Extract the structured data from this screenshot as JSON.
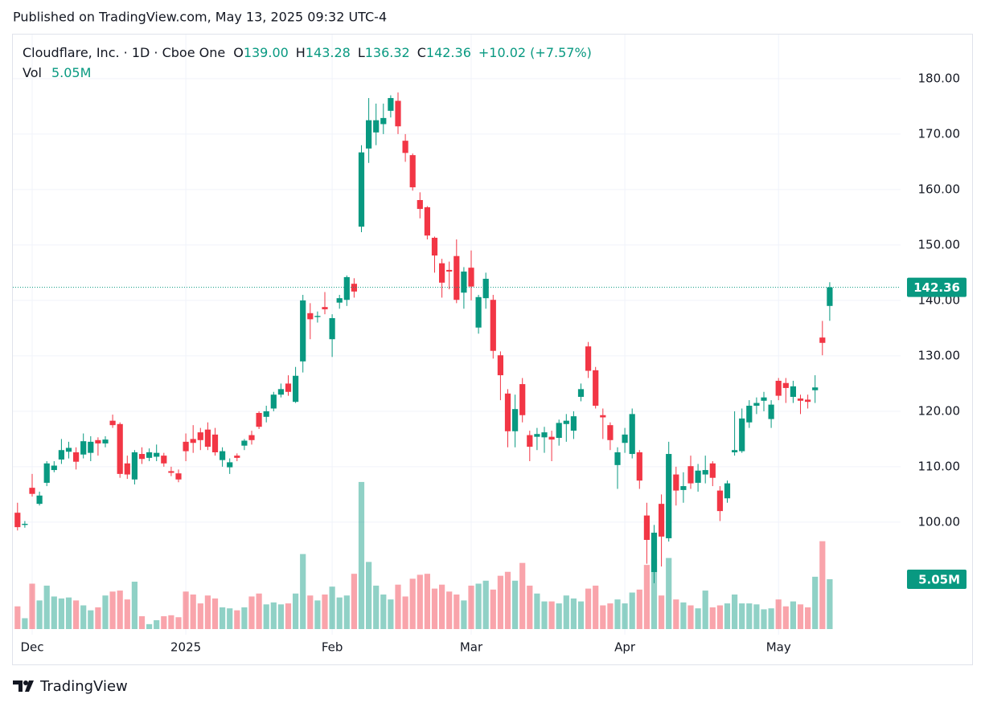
{
  "header": "Published on TradingView.com, May 13, 2025 09:32 UTC-4",
  "footer": "TradingView",
  "chart_data": {
    "type": "candlestick",
    "legend": {
      "title": "Cloudflare, Inc. · 1D · Cboe One",
      "ohlc": [
        {
          "label": "O",
          "value": "139.00"
        },
        {
          "label": "H",
          "value": "143.28"
        },
        {
          "label": "L",
          "value": "136.32"
        },
        {
          "label": "C",
          "value": "142.36"
        }
      ],
      "change": "+10.02 (+7.57%)"
    },
    "up_color": "#089981",
    "down_color": "#f23645",
    "grid": true,
    "ylim": [
      79.7,
      188.1
    ],
    "yticks": [
      {
        "value": 100,
        "label": "100.00"
      },
      {
        "value": 110,
        "label": "110.00"
      },
      {
        "value": 120,
        "label": "120.00"
      },
      {
        "value": 130,
        "label": "130.00"
      },
      {
        "value": 140,
        "label": "140.00"
      },
      {
        "value": 150,
        "label": "150.00"
      },
      {
        "value": 160,
        "label": "160.00"
      },
      {
        "value": 170,
        "label": "170.00"
      },
      {
        "value": 180,
        "label": "180.00"
      }
    ],
    "categories": [
      null,
      null,
      "Dec",
      null,
      null,
      null,
      null,
      null,
      null,
      null,
      null,
      null,
      null,
      null,
      null,
      null,
      null,
      null,
      null,
      null,
      null,
      null,
      null,
      "2025",
      null,
      null,
      null,
      null,
      null,
      null,
      null,
      null,
      null,
      null,
      null,
      null,
      null,
      null,
      null,
      null,
      null,
      null,
      null,
      "Feb",
      null,
      null,
      null,
      null,
      null,
      null,
      null,
      null,
      null,
      null,
      null,
      null,
      null,
      null,
      null,
      null,
      null,
      null,
      "Mar",
      null,
      null,
      null,
      null,
      null,
      null,
      null,
      null,
      null,
      null,
      null,
      null,
      null,
      null,
      null,
      null,
      null,
      null,
      null,
      null,
      "Apr",
      null,
      null,
      null,
      null,
      null,
      null,
      null,
      null,
      null,
      null,
      null,
      null,
      null,
      null,
      null,
      null,
      null,
      null,
      null,
      null,
      "May",
      null,
      null,
      null,
      null,
      null,
      null,
      null
    ],
    "open": [
      101.7,
      99.5,
      106.2,
      103.3,
      107.1,
      109.4,
      111.3,
      112.7,
      112.6,
      112.2,
      112.5,
      114.8,
      114.2,
      118.3,
      117.7,
      110.6,
      107.7,
      112.3,
      111.6,
      111.8,
      112,
      109.2,
      108.8,
      114.5,
      115,
      116.2,
      116.7,
      115.8,
      111.2,
      109.9,
      112,
      113.8,
      115.7,
      119.7,
      119,
      120.5,
      123,
      125,
      121.7,
      129,
      137.7,
      137,
      138.8,
      133,
      139.6,
      140.1,
      143,
      153.3,
      167.4,
      170.3,
      171.8,
      174.2,
      176,
      168.8,
      166.2,
      158.1,
      156.8,
      151.3,
      146.7,
      145.5,
      148,
      141.4,
      145.9,
      135.1,
      140.4,
      140.1,
      130.1,
      123.2,
      116.4,
      124.9,
      115.7,
      115.4,
      115.3,
      115.4,
      115.2,
      117.7,
      116.5,
      122.6,
      131.7,
      127.4,
      119.3,
      117.5,
      110.3,
      114.3,
      112.3,
      112.6,
      101.2,
      91,
      103.3,
      97.1,
      108.6,
      105.8,
      110.1,
      107.1,
      108.6,
      110.6,
      105.7,
      104.3,
      112.6,
      112.8,
      118,
      121,
      121.9,
      118.6,
      125.5,
      125.1,
      122.6,
      122.3,
      122.1,
      123.8,
      133.3,
      139
    ],
    "high": [
      103.5,
      100.2,
      108.7,
      105.5,
      111,
      111,
      115,
      114.5,
      113.5,
      116,
      115.5,
      115.3,
      115.5,
      119.4,
      118,
      112,
      113,
      113.5,
      113.3,
      114,
      112.5,
      110,
      109.5,
      116,
      117.5,
      117,
      118,
      117,
      113.5,
      111.5,
      112.4,
      115,
      116.5,
      120,
      121,
      123.5,
      125,
      126.5,
      128,
      141,
      139.5,
      138,
      141.5,
      137.5,
      141,
      144.5,
      144,
      168,
      176.5,
      175.5,
      175.5,
      177,
      177.5,
      170,
      166.5,
      159.5,
      157,
      151.5,
      147.5,
      147,
      151,
      146,
      149,
      141,
      145,
      141,
      130.8,
      124,
      123,
      126,
      116.5,
      117,
      117.2,
      116.5,
      118.5,
      119.5,
      120,
      125,
      132.5,
      128,
      120.5,
      118,
      113.5,
      117,
      120.5,
      113,
      103.5,
      99.5,
      105,
      114.5,
      110,
      109,
      112,
      110.5,
      112,
      111,
      106.5,
      107.5,
      120,
      120.5,
      122,
      122.5,
      123.5,
      122,
      126,
      126,
      125.5,
      123,
      123,
      126.5,
      136.3,
      143.28
    ],
    "low": [
      98.5,
      99,
      104.6,
      103,
      106.5,
      109,
      110.5,
      111.5,
      109.5,
      111.5,
      111,
      112,
      113.5,
      117,
      108,
      107.8,
      106.8,
      110.5,
      111,
      111,
      110,
      108.3,
      107.2,
      111,
      112.5,
      113,
      113,
      112,
      110,
      108.7,
      111,
      113,
      114,
      116.8,
      118,
      120,
      122.5,
      122.8,
      121.5,
      127,
      133,
      136,
      137.5,
      129.8,
      138.5,
      139,
      140.5,
      152.3,
      164.8,
      168,
      170,
      173,
      170,
      165,
      159.8,
      154.8,
      151,
      145,
      140.5,
      142,
      139.5,
      138.5,
      140,
      134,
      138.5,
      129.5,
      122,
      113.5,
      113.5,
      118,
      111,
      113,
      112.5,
      111,
      113.8,
      114.5,
      115,
      121.8,
      126,
      120.5,
      115,
      113,
      106,
      112.5,
      111.5,
      106,
      92.5,
      89,
      92,
      96.5,
      103,
      103.5,
      106,
      105.5,
      107,
      106.5,
      100.2,
      103.5,
      112,
      112.5,
      117,
      119.5,
      120,
      117,
      122,
      121.5,
      121.5,
      119.5,
      120.5,
      121.5,
      130.1,
      136.32
    ],
    "close": [
      99.1,
      99.7,
      105.1,
      104.8,
      110.6,
      110.2,
      113,
      113.4,
      110.9,
      114.6,
      114.5,
      114.2,
      114.9,
      117.5,
      108.7,
      108.6,
      112.6,
      111.4,
      112.6,
      112.5,
      110.6,
      108.9,
      107.7,
      112.8,
      114.3,
      114.8,
      113.6,
      112.6,
      112.8,
      110.8,
      111.6,
      114.7,
      114.8,
      117.2,
      120,
      123,
      124,
      123.5,
      126.4,
      140,
      136.6,
      137.2,
      138.4,
      136.8,
      140.4,
      144.2,
      141.6,
      166.7,
      172.5,
      172.5,
      172.9,
      176.5,
      171.4,
      166.6,
      160.4,
      156.5,
      151.7,
      148.1,
      143.2,
      145.2,
      140.1,
      145.2,
      142.5,
      140.6,
      143.9,
      130.9,
      126.5,
      116.4,
      120.4,
      119.3,
      113.6,
      115.9,
      116.2,
      114.9,
      117.9,
      118.3,
      119.1,
      124,
      127.3,
      121,
      118.9,
      114.8,
      112.6,
      115.8,
      119.5,
      107.5,
      96.8,
      98.1,
      97.4,
      112.3,
      105.7,
      106.5,
      107,
      109.3,
      109.4,
      108,
      102,
      107,
      113,
      118.7,
      121,
      121.5,
      122.5,
      121.2,
      122.8,
      124.2,
      124.5,
      121.9,
      121.7,
      124.3,
      132.34,
      142.36
    ],
    "volume": {
      "name": "Vol",
      "last_value_label": "5.05M",
      "ylim": [
        0,
        60.3
      ],
      "values": [
        2.3,
        1.1,
        4.6,
        2.9,
        4.4,
        3.3,
        3.1,
        3.2,
        2.9,
        2.4,
        1.9,
        2.2,
        3.4,
        3.8,
        3.9,
        3,
        4.8,
        1.3,
        0.5,
        0.9,
        1.3,
        1.4,
        1.2,
        3.8,
        3.5,
        2.6,
        3.4,
        3.1,
        2.2,
        2.1,
        1.9,
        2.2,
        3.3,
        3.6,
        2.5,
        2.7,
        2.5,
        2.6,
        3.6,
        7.6,
        3.4,
        2.9,
        3.5,
        4.3,
        3.2,
        3.4,
        5.6,
        14.9,
        6.8,
        4.4,
        3.5,
        3,
        4.5,
        3.3,
        5.1,
        5.5,
        5.6,
        4.1,
        4.5,
        3.8,
        3.5,
        2.9,
        4.4,
        4.6,
        4.9,
        4,
        5.4,
        5.8,
        4.9,
        6.7,
        4.4,
        3.6,
        2.8,
        2.8,
        2.6,
        3.4,
        3.1,
        2.8,
        4.1,
        4.4,
        2.4,
        2.6,
        3,
        2.6,
        3.7,
        4,
        6.5,
        7.1,
        3.4,
        7.2,
        3,
        2.7,
        2.4,
        2.1,
        3.9,
        2.2,
        2.4,
        2.6,
        3.5,
        2.6,
        2.6,
        2.5,
        2,
        2.1,
        3,
        2.3,
        2.8,
        2.5,
        2.2,
        5.3,
        8.9,
        5.05
      ]
    }
  }
}
